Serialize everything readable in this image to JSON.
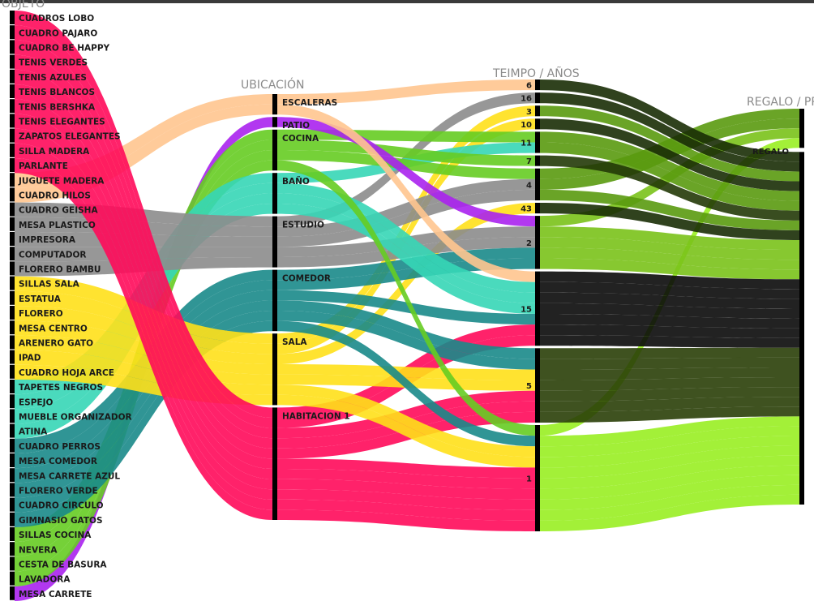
{
  "axes": [
    {
      "title": "OBJETO"
    },
    {
      "title": "UBICACIÓN"
    },
    {
      "title": "TEIMPO / AÑOS"
    },
    {
      "title": "REGALO / PROPIO"
    }
  ],
  "colors": {
    "CUADROS LOBO": "#ff0a5a",
    "CUADRO PAJARO": "#ff0a5a",
    "CUADRO BE HAPPY": "#ff0a5a",
    "TENIS VERDES": "#ff0a5a",
    "TENIS AZULES": "#ff0a5a",
    "TENIS BLANCOS": "#ff0a5a",
    "TENIS BERSHKA": "#ff0a5a",
    "TENIS ELEGANTES": "#ff0a5a",
    "ZAPATOS ELEGANTES": "#ff0a5a",
    "SILLA MADERA": "#ff0a5a",
    "PARLANTE": "#ff0a5a",
    "JUGUETE MADERA": "#ffc58f",
    "CUADRO HILOS": "#ffc58f",
    "CUADRO GEISHA": "#8c8c8c",
    "MESA PLASTICO": "#8c8c8c",
    "IMPRESORA": "#8c8c8c",
    "COMPUTADOR": "#8c8c8c",
    "FLORERO BAMBU": "#8c8c8c",
    "SILLAS SALA": "#ffe01a",
    "ESTATUA": "#ffe01a",
    "FLORERO": "#ffe01a",
    "MESA CENTRO": "#ffe01a",
    "ARENERO GATO": "#ffe01a",
    "IPAD": "#ffe01a",
    "CUADRO HOJA ARCE": "#ffe01a",
    "TAPETES NEGROS": "#36d6b6",
    "ESPEJO": "#36d6b6",
    "MUEBLE ORGANIZADOR": "#36d6b6",
    "ATINA": "#36d6b6",
    "CUADRO PERROS": "#1a8a8a",
    "MESA COMEDOR": "#1a8a8a",
    "MESA CARRETE AZUL": "#1a8a8a",
    "FLORERO VERDE": "#1a8a8a",
    "CUADRO CIRCULO": "#1a8a8a",
    "GIMNASIO GATOS": "#1a8a8a",
    "SILLAS COCINA": "#66cc22",
    "NEVERA": "#66cc22",
    "CESTA DE BASURA": "#66cc22",
    "LAVADORA": "#66cc22",
    "MESA CARRETE": "#aa22ee"
  },
  "links": [
    [
      "CUADROS LOBO",
      "HABITACION 1",
      "1",
      "PROPIO"
    ],
    [
      "CUADRO PAJARO",
      "HABITACION 1",
      "1",
      "PROPIO"
    ],
    [
      "CUADRO BE HAPPY",
      "HABITACION 1",
      "5",
      "PROPIO"
    ],
    [
      "TENIS VERDES",
      "HABITACION 1",
      "1",
      "PROPIO"
    ],
    [
      "TENIS AZULES",
      "HABITACION 1",
      "5",
      "PROPIO"
    ],
    [
      "TENIS BLANCOS",
      "HABITACION 1",
      "1",
      "PROPIO"
    ],
    [
      "TENIS BERSHKA",
      "HABITACION 1",
      "15",
      "PROPIO"
    ],
    [
      "TENIS ELEGANTES",
      "HABITACION 1",
      "1",
      "PROPIO"
    ],
    [
      "ZAPATOS ELEGANTES",
      "HABITACION 1",
      "5",
      "PROPIO"
    ],
    [
      "SILLA MADERA",
      "HABITACION 1",
      "15",
      "PROPIO"
    ],
    [
      "PARLANTE",
      "HABITACION 1",
      "1",
      "PROPIO"
    ],
    [
      "JUGUETE MADERA",
      "ESCALERAS",
      "6",
      "PROPIO"
    ],
    [
      "CUADRO HILOS",
      "ESCALERAS",
      "15",
      "PROPIO"
    ],
    [
      "CUADRO GEISHA",
      "ESTUDIO",
      "16",
      "PROPIO"
    ],
    [
      "MESA PLASTICO",
      "ESTUDIO",
      "4",
      "PROPIO"
    ],
    [
      "IMPRESORA",
      "ESTUDIO",
      "2",
      "PROPIO"
    ],
    [
      "COMPUTADOR",
      "ESTUDIO",
      "2",
      "PROPIO"
    ],
    [
      "FLORERO BAMBU",
      "ESTUDIO",
      "4",
      "REGALO"
    ],
    [
      "SILLAS SALA",
      "SALA",
      "3",
      "PROPIO"
    ],
    [
      "ESTATUA",
      "SALA",
      "43",
      "PROPIO"
    ],
    [
      "FLORERO",
      "SALA",
      "5",
      "PROPIO"
    ],
    [
      "MESA CENTRO",
      "SALA",
      "10",
      "PROPIO"
    ],
    [
      "ARENERO GATO",
      "SALA",
      "1",
      "PROPIO"
    ],
    [
      "IPAD",
      "SALA",
      "1",
      "PROPIO"
    ],
    [
      "CUADRO HOJA ARCE",
      "SALA",
      "5",
      "PROPIO"
    ],
    [
      "TAPETES NEGROS",
      "BAÑO",
      "15",
      "PROPIO"
    ],
    [
      "ESPEJO",
      "BAÑO",
      "11",
      "PROPIO"
    ],
    [
      "MUEBLE ORGANIZADOR",
      "BAÑO",
      "15",
      "PROPIO"
    ],
    [
      "ATINA",
      "BAÑO",
      "15",
      "PROPIO"
    ],
    [
      "CUADRO PERROS",
      "COMEDOR",
      "2",
      "PROPIO"
    ],
    [
      "MESA COMEDOR",
      "COMEDOR",
      "5",
      "PROPIO"
    ],
    [
      "MESA CARRETE AZUL",
      "COMEDOR",
      "2",
      "PROPIO"
    ],
    [
      "FLORERO VERDE",
      "COMEDOR",
      "1",
      "PROPIO"
    ],
    [
      "CUADRO CIRCULO",
      "COMEDOR",
      "15",
      "PROPIO"
    ],
    [
      "GIMNASIO GATOS",
      "COMEDOR",
      "5",
      "PROPIO"
    ],
    [
      "SILLAS COCINA",
      "COCINA",
      "7",
      "PROPIO"
    ],
    [
      "NEVERA",
      "COCINA",
      "4",
      "REGALO"
    ],
    [
      "CESTA DE BASURA",
      "COCINA",
      "11",
      "PROPIO"
    ],
    [
      "LAVADORA",
      "COCINA",
      "1",
      "REGALO"
    ],
    [
      "MESA CARRETE",
      "PATIO",
      "2",
      "REGALO"
    ]
  ],
  "tiempo_colors": {
    "6": "#1a2e05",
    "16": "#1a2e05",
    "3": "#5a9a10",
    "10": "#1a2e05",
    "11": "#5a9a10",
    "7": "#243a08",
    "4": "#5a9a10",
    "43": "#1a2e05",
    "2": "#7ac21a",
    "15": "#0a0a0a",
    "5": "#2a3f08",
    "1": "#99ee22"
  }
}
